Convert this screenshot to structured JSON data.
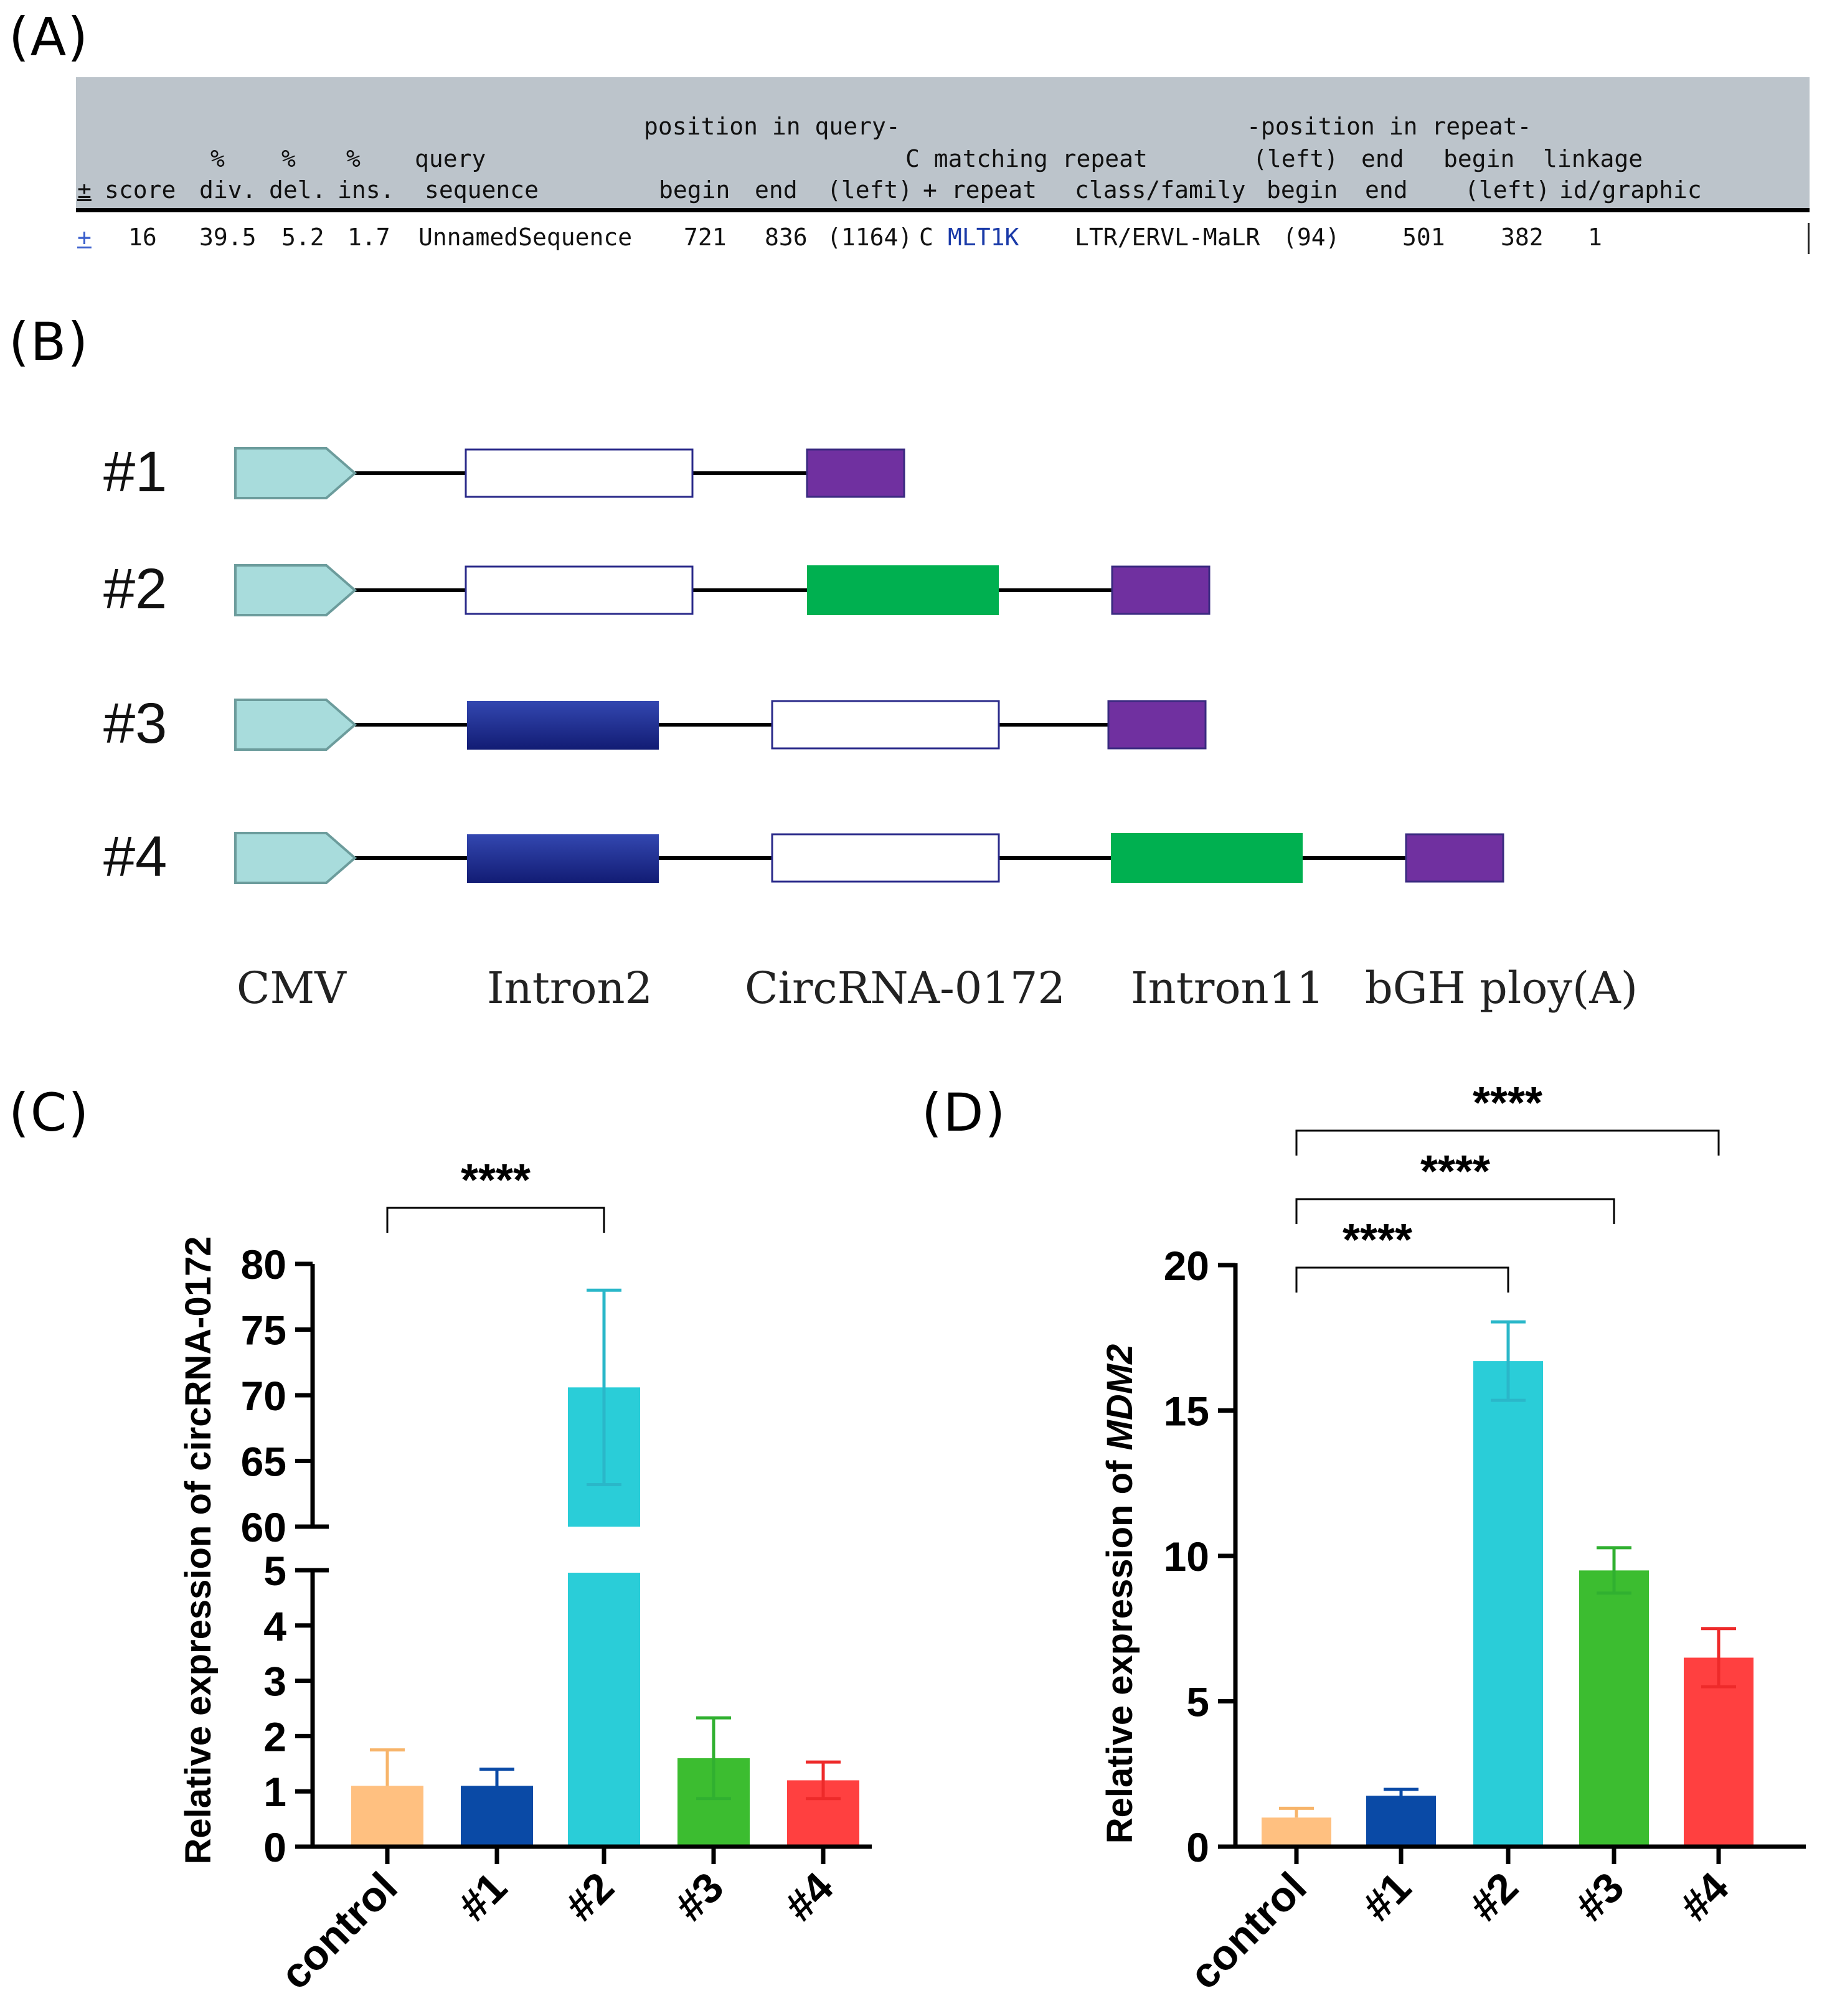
{
  "panel_labels": {
    "a": "(A)",
    "b": "(B)",
    "c": "(C)",
    "d": "(D)"
  },
  "repeatmasker": {
    "header": {
      "group_query": "position in query-",
      "group_repeat": "-position in repeat-",
      "c_matching": "C matching repeat",
      "pct1": "%",
      "pct2": "%",
      "pct3": "%",
      "query_top": "query",
      "left_top": "(left)",
      "end_top": "end",
      "begin_top": "begin",
      "linkage_top": "linkage",
      "plusminus": "±",
      "score": "score",
      "div": "div.",
      "del": "del.",
      "ins": "ins.",
      "sequence": "sequence",
      "begin": "begin",
      "end": "end",
      "left": "(left)",
      "plus_repeat": "+ repeat",
      "class_family": "class/family",
      "r_begin": "begin",
      "r_end": "end",
      "r_left": "(left)",
      "idgraphic": "id/graphic"
    },
    "row": {
      "plus": "+",
      "score": "16",
      "div": "39.5",
      "del": "5.2",
      "ins": "1.7",
      "sequence": "UnnamedSequence",
      "begin": "721",
      "end": "836",
      "left": "(1164)",
      "strand": "C",
      "repeat": "MLT1K",
      "class_family": "LTR/ERVL-MaLR",
      "r_left": "(94)",
      "r_end": "501",
      "r_begin": "382",
      "linkage": "1"
    }
  },
  "constructs": {
    "rows": [
      "#1",
      "#2",
      "#3",
      "#4"
    ],
    "legend": [
      "CMV",
      "Intron2",
      "CircRNA-0172",
      "Intron11",
      "bGH ploy(A)"
    ],
    "colors": {
      "cmv": "#a8dcdc",
      "cmv_edge": "#6c9c9c",
      "intron2": "#1e2a8c",
      "circ_edge": "#2a2a8a",
      "intron11": "#00b050",
      "polya": "#7030a0"
    }
  },
  "chart_data": [
    {
      "type": "bar",
      "title": "",
      "xlabel": "",
      "ylabel": "Relative expression of circRNA-0172",
      "categories": [
        "control",
        "#1",
        "#2",
        "#3",
        "#4"
      ],
      "values": [
        1.1,
        1.1,
        70.6,
        1.6,
        1.2
      ],
      "error": [
        0.65,
        0.3,
        7.4,
        0.73,
        0.33
      ],
      "colors": [
        "#ffc080",
        "#0a4aa6",
        "#2acdd8",
        "#3cbd30",
        "#ff4040"
      ],
      "error_colors": [
        "#f7b46a",
        "#0a4aa6",
        "#2ab7c9",
        "#30b030",
        "#ee2a2a"
      ],
      "axis_break": {
        "lower": [
          0,
          5
        ],
        "upper": [
          60,
          80
        ]
      },
      "yticks_lower": [
        "0",
        "1",
        "2",
        "3",
        "4",
        "5"
      ],
      "yticks_upper": [
        "60",
        "65",
        "70",
        "75",
        "80"
      ],
      "significance": [
        {
          "from": "control",
          "to": "#2",
          "label": "****"
        }
      ]
    },
    {
      "type": "bar",
      "title": "",
      "xlabel": "",
      "ylabel_prefix": "Relative expression of ",
      "ylabel_gene": "MDM2",
      "categories": [
        "control",
        "#1",
        "#2",
        "#3",
        "#4"
      ],
      "values": [
        1.0,
        1.75,
        16.7,
        9.5,
        6.5
      ],
      "error": [
        0.32,
        0.22,
        1.35,
        0.78,
        1.0
      ],
      "colors": [
        "#ffc080",
        "#0a4aa6",
        "#2acdd8",
        "#3cbd30",
        "#ff4040"
      ],
      "error_colors": [
        "#f7b46a",
        "#0a4aa6",
        "#2ab7c9",
        "#30b030",
        "#ee2a2a"
      ],
      "ylim": [
        0,
        20
      ],
      "yticks": [
        "0",
        "5",
        "10",
        "15",
        "20"
      ],
      "significance": [
        {
          "from": "control",
          "to": "#2",
          "label": "****"
        },
        {
          "from": "control",
          "to": "#3",
          "label": "****"
        },
        {
          "from": "control",
          "to": "#4",
          "label": "****"
        }
      ]
    }
  ]
}
